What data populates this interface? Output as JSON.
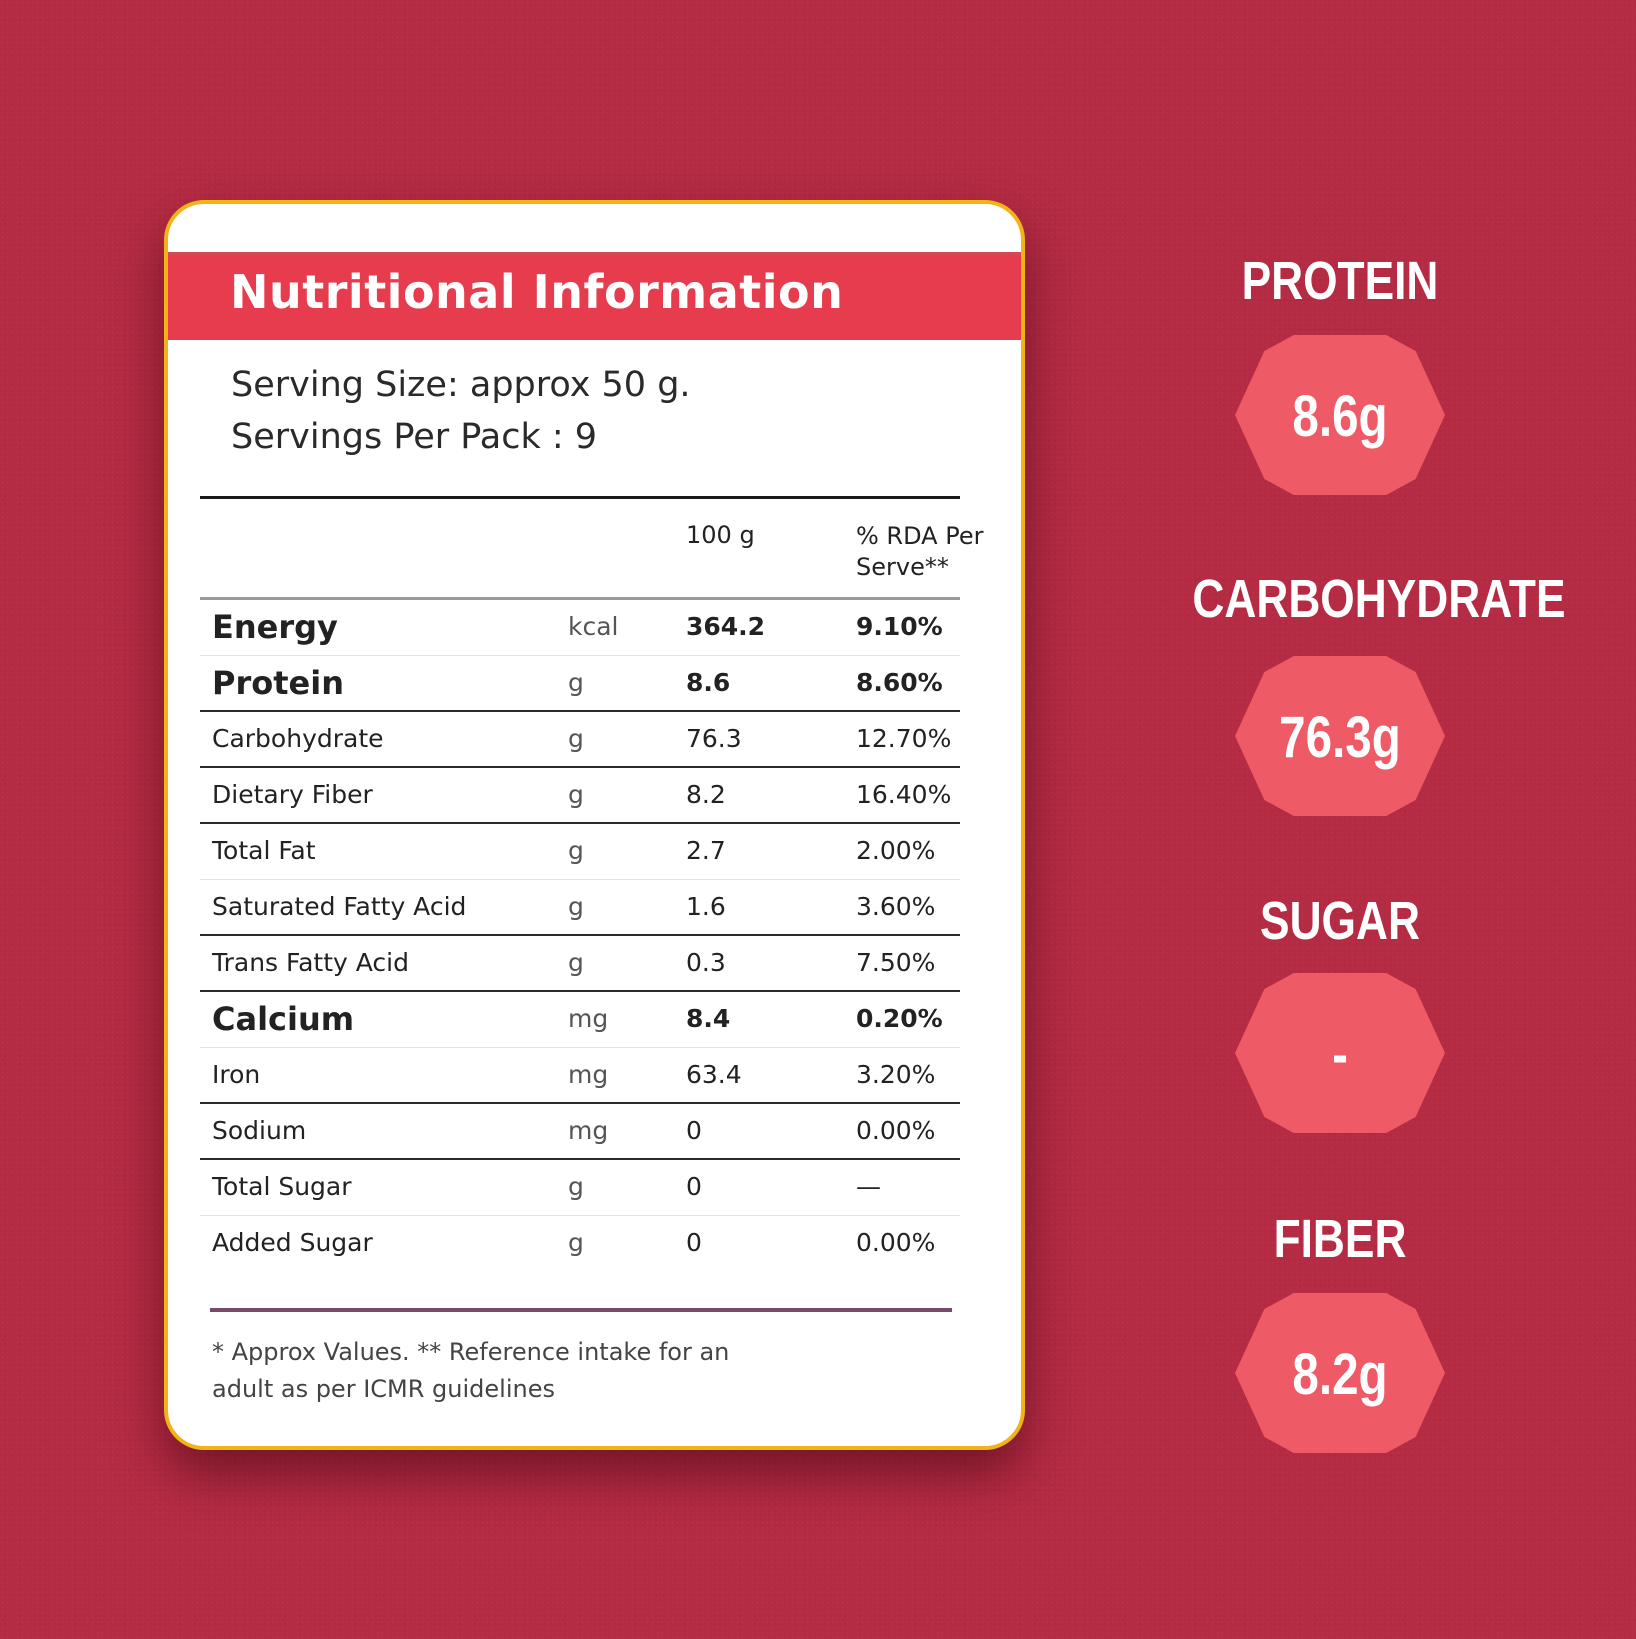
{
  "card": {
    "title": "Nutritional Information",
    "serving_size": "Serving Size: approx 50 g.",
    "servings_per_pack": "Servings Per Pack : 9",
    "columns": {
      "per100": "100 g",
      "rda": "% RDA Per Serve**"
    },
    "rows": [
      {
        "name": "Energy",
        "unit": "kcal",
        "value": "364.2",
        "rda": "9.10%"
      },
      {
        "name": "Protein",
        "unit": "g",
        "value": "8.6",
        "rda": "8.60%"
      },
      {
        "name": "Carbohydrate",
        "unit": "g",
        "value": "76.3",
        "rda": "12.70%"
      },
      {
        "name": "Dietary Fiber",
        "unit": "g",
        "value": "8.2",
        "rda": "16.40%"
      },
      {
        "name": "Total Fat",
        "unit": "g",
        "value": "2.7",
        "rda": "2.00%"
      },
      {
        "name": "Saturated Fatty Acid",
        "unit": "g",
        "value": "1.6",
        "rda": "3.60%"
      },
      {
        "name": "Trans Fatty Acid",
        "unit": "g",
        "value": "0.3",
        "rda": "7.50%"
      },
      {
        "name": "Calcium",
        "unit": "mg",
        "value": "8.4",
        "rda": "0.20%"
      },
      {
        "name": "Iron",
        "unit": "mg",
        "value": "63.4",
        "rda": "3.20%"
      },
      {
        "name": "Sodium",
        "unit": "mg",
        "value": "0",
        "rda": "0.00%"
      },
      {
        "name": "Total Sugar",
        "unit": "g",
        "value": "0",
        "rda": "—"
      },
      {
        "name": "Added Sugar",
        "unit": "g",
        "value": "0",
        "rda": "0.00%"
      }
    ],
    "footnote_line1": "* Approx Values. ** Reference intake for an",
    "footnote_line2": "adult as per ICMR guidelines"
  },
  "badges": [
    {
      "label": "PROTEIN",
      "value": "8.6g"
    },
    {
      "label": "CARBOHYDRATE",
      "value": "76.3g"
    },
    {
      "label": "SUGAR",
      "value": "-"
    },
    {
      "label": "FIBER",
      "value": "8.2g"
    }
  ],
  "colors": {
    "background": "#b52b43",
    "title_bar": "#e63c4d",
    "card_border": "#f2b317",
    "badge": "#ee5a66"
  }
}
